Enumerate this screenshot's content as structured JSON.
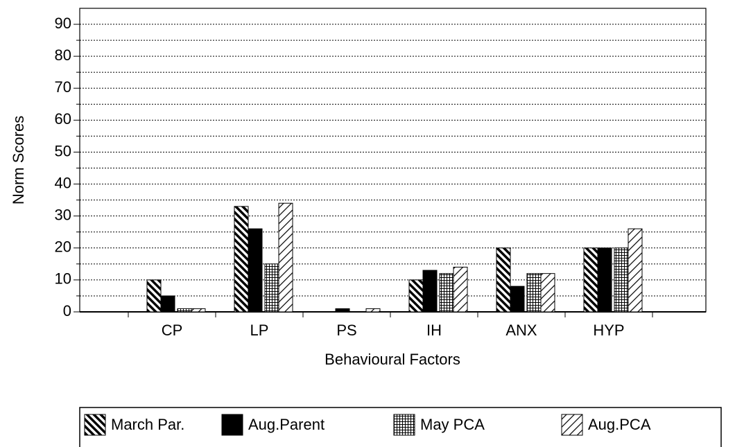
{
  "chart_data": {
    "type": "bar",
    "x_label": "Behavioural Factors",
    "y_label": "Norm Scores",
    "categories": [
      "CP",
      "LP",
      "PS",
      "IH",
      "ANX",
      "HYP"
    ],
    "series": [
      {
        "name": "March Par.",
        "color": "#000000",
        "pattern": "backslash",
        "values": [
          10,
          33,
          0,
          10,
          20,
          20
        ]
      },
      {
        "name": "Aug.Parent",
        "color": "#000000",
        "pattern": "solid",
        "values": [
          5,
          26,
          1,
          13,
          8,
          20
        ]
      },
      {
        "name": "May PCA",
        "color": "#000000",
        "pattern": "grid",
        "values": [
          1,
          15,
          0,
          12,
          12,
          20
        ]
      },
      {
        "name": "Aug.PCA",
        "color": "#000000",
        "pattern": "slash",
        "values": [
          1,
          34,
          1,
          14,
          12,
          26
        ]
      }
    ],
    "ylim": [
      0,
      95
    ],
    "yticks": [
      0,
      10,
      20,
      30,
      40,
      50,
      60,
      70,
      80,
      90
    ],
    "yminor": [
      5,
      15,
      25,
      35,
      45,
      55,
      65,
      75,
      85
    ],
    "grid": true,
    "legend": "bottom"
  }
}
